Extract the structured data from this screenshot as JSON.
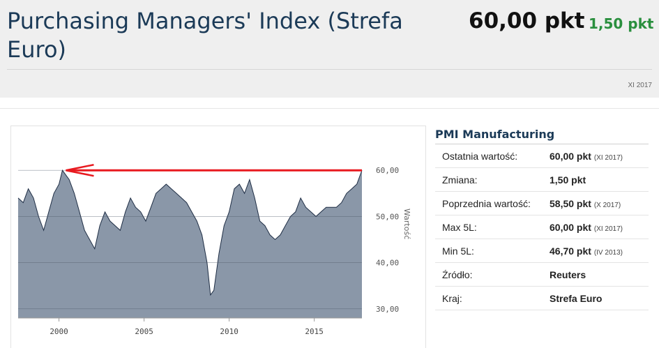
{
  "header": {
    "title": "Purchasing Managers' Index (Strefa Euro)",
    "value": "60,00 pkt",
    "change": "1,50 pkt",
    "period": "XI 2017",
    "change_color": "#2a8f3e"
  },
  "chart_data": {
    "type": "area",
    "ylabel": "Wartość",
    "ylim": [
      28,
      62
    ],
    "yticks": [
      "30,00",
      "40,00",
      "50,00",
      "60,00"
    ],
    "xticks": [
      "2000",
      "2005",
      "2010",
      "2015"
    ],
    "x": [
      1997.6,
      1997.9,
      1998.2,
      1998.5,
      1998.8,
      1999.1,
      1999.4,
      1999.7,
      2000.0,
      2000.2,
      2000.6,
      2000.9,
      2001.2,
      2001.5,
      2001.8,
      2002.1,
      2002.4,
      2002.7,
      2003.0,
      2003.3,
      2003.6,
      2003.9,
      2004.2,
      2004.5,
      2004.8,
      2005.1,
      2005.4,
      2005.7,
      2006.0,
      2006.3,
      2006.6,
      2006.9,
      2007.2,
      2007.5,
      2007.8,
      2008.1,
      2008.4,
      2008.7,
      2008.9,
      2009.1,
      2009.4,
      2009.7,
      2010.0,
      2010.3,
      2010.6,
      2010.9,
      2011.2,
      2011.5,
      2011.8,
      2012.1,
      2012.4,
      2012.7,
      2013.0,
      2013.3,
      2013.6,
      2013.9,
      2014.2,
      2014.5,
      2014.8,
      2015.1,
      2015.4,
      2015.7,
      2016.0,
      2016.3,
      2016.6,
      2016.9,
      2017.2,
      2017.5,
      2017.8
    ],
    "series": [
      {
        "color": "#8a97a8",
        "values": [
          54,
          53,
          56,
          54,
          50,
          47,
          51,
          55,
          57,
          60,
          58,
          55,
          51,
          47,
          45,
          43,
          48,
          51,
          49,
          48,
          47,
          51,
          54,
          52,
          51,
          49,
          52,
          55,
          56,
          57,
          56,
          55,
          54,
          53,
          51,
          49,
          46,
          40,
          33,
          34,
          42,
          48,
          51,
          56,
          57,
          55,
          58,
          54,
          49,
          48,
          46,
          45,
          46,
          48,
          50,
          51,
          54,
          52,
          51,
          50,
          51,
          52,
          52,
          52,
          53,
          55,
          56,
          57,
          60
        ]
      }
    ],
    "markers": [
      {
        "y": 60,
        "color": "#e8191f"
      }
    ]
  },
  "panel": {
    "title": "PMI Manufacturing",
    "rows": [
      {
        "label": "Ostatnia wartość:",
        "value": "60,00 pkt",
        "date": "(XI 2017)"
      },
      {
        "label": "Zmiana:",
        "value": "1,50 pkt",
        "date": ""
      },
      {
        "label": "Poprzednia wartość:",
        "value": "58,50 pkt",
        "date": "(X 2017)"
      },
      {
        "label": "Max 5L:",
        "value": "60,00 pkt",
        "date": "(XI 2017)"
      },
      {
        "label": "Min 5L:",
        "value": "46,70 pkt",
        "date": "(IV 2013)"
      },
      {
        "label": "Źródło:",
        "value": "Reuters",
        "date": ""
      },
      {
        "label": "Kraj:",
        "value": "Strefa Euro",
        "date": ""
      }
    ]
  }
}
